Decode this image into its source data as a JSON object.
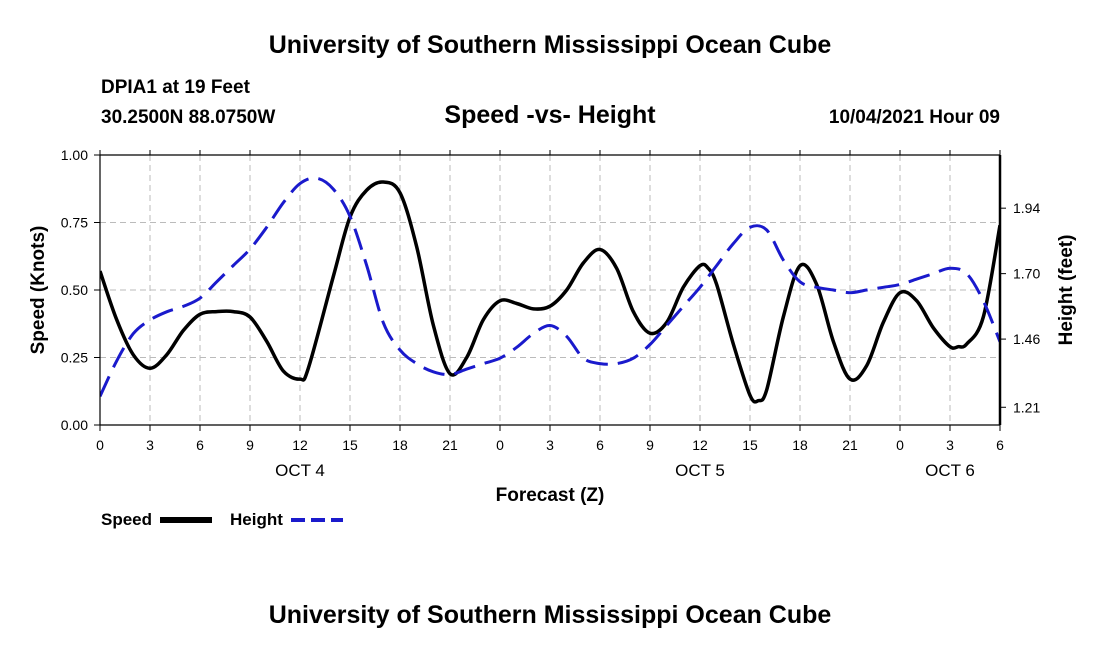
{
  "header": {
    "title_top": "University of Southern Mississippi Ocean Cube",
    "station": "DPIA1 at 19 Feet",
    "coords": "30.2500N  88.0750W",
    "subtitle": "Speed -vs- Height",
    "datetime": "10/04/2021 Hour 09",
    "title_bottom": "University of Southern Mississippi Ocean Cube"
  },
  "legend": {
    "speed_label": "Speed",
    "height_label": "Height"
  },
  "colors": {
    "speed": "#000000",
    "height": "#1a1acc",
    "grid": "#bbbbbb"
  },
  "chart_data": {
    "type": "line",
    "title": "Speed -vs- Height",
    "xlabel": "Forecast (Z)",
    "ylabel": "Speed (Knots)",
    "y2label": "Height (feet)",
    "x_range_hours": [
      0,
      54
    ],
    "ylim": [
      0,
      1.0
    ],
    "y2lim": [
      1.145,
      2.135
    ],
    "x_ticks": [
      {
        "h": 0,
        "label": "0"
      },
      {
        "h": 3,
        "label": "3"
      },
      {
        "h": 6,
        "label": "6"
      },
      {
        "h": 9,
        "label": "9"
      },
      {
        "h": 12,
        "label": "12"
      },
      {
        "h": 15,
        "label": "15"
      },
      {
        "h": 18,
        "label": "18"
      },
      {
        "h": 21,
        "label": "21"
      },
      {
        "h": 24,
        "label": "0"
      },
      {
        "h": 27,
        "label": "3"
      },
      {
        "h": 30,
        "label": "6"
      },
      {
        "h": 33,
        "label": "9"
      },
      {
        "h": 36,
        "label": "12"
      },
      {
        "h": 39,
        "label": "15"
      },
      {
        "h": 42,
        "label": "18"
      },
      {
        "h": 45,
        "label": "21"
      },
      {
        "h": 48,
        "label": "0"
      },
      {
        "h": 51,
        "label": "3"
      },
      {
        "h": 54,
        "label": "6"
      }
    ],
    "date_labels": [
      {
        "h": 12,
        "label": "OCT 4"
      },
      {
        "h": 36,
        "label": "OCT 5"
      },
      {
        "h": 51,
        "label": "OCT 6"
      }
    ],
    "y_ticks": [
      {
        "v": 0.0,
        "label": "0.00"
      },
      {
        "v": 0.25,
        "label": "0.25"
      },
      {
        "v": 0.5,
        "label": "0.50"
      },
      {
        "v": 0.75,
        "label": "0.75"
      },
      {
        "v": 1.0,
        "label": "1.00"
      }
    ],
    "y2_ticks": [
      {
        "v": 1.21,
        "label": "1.21"
      },
      {
        "v": 1.46,
        "label": "1.46"
      },
      {
        "v": 1.7,
        "label": "1.70"
      },
      {
        "v": 1.94,
        "label": "1.94"
      }
    ],
    "series": [
      {
        "name": "Speed",
        "axis": "left",
        "points": [
          [
            0,
            0.57
          ],
          [
            1,
            0.39
          ],
          [
            2,
            0.26
          ],
          [
            3,
            0.21
          ],
          [
            4,
            0.26
          ],
          [
            5,
            0.35
          ],
          [
            6,
            0.41
          ],
          [
            7,
            0.42
          ],
          [
            8,
            0.42
          ],
          [
            9,
            0.4
          ],
          [
            10,
            0.31
          ],
          [
            11,
            0.2
          ],
          [
            12,
            0.17
          ],
          [
            12.5,
            0.21
          ],
          [
            14,
            0.55
          ],
          [
            15,
            0.77
          ],
          [
            16,
            0.87
          ],
          [
            17,
            0.9
          ],
          [
            18,
            0.86
          ],
          [
            19,
            0.66
          ],
          [
            20,
            0.37
          ],
          [
            21,
            0.19
          ],
          [
            22,
            0.25
          ],
          [
            23,
            0.39
          ],
          [
            24,
            0.46
          ],
          [
            25,
            0.45
          ],
          [
            26,
            0.43
          ],
          [
            27,
            0.44
          ],
          [
            28,
            0.5
          ],
          [
            29,
            0.6
          ],
          [
            30,
            0.65
          ],
          [
            31,
            0.58
          ],
          [
            32,
            0.42
          ],
          [
            33,
            0.34
          ],
          [
            34,
            0.38
          ],
          [
            35,
            0.51
          ],
          [
            36,
            0.59
          ],
          [
            36.5,
            0.58
          ],
          [
            37,
            0.52
          ],
          [
            38,
            0.3
          ],
          [
            39,
            0.11
          ],
          [
            39.5,
            0.09
          ],
          [
            40,
            0.13
          ],
          [
            41,
            0.4
          ],
          [
            42,
            0.59
          ],
          [
            43,
            0.52
          ],
          [
            44,
            0.31
          ],
          [
            45,
            0.17
          ],
          [
            46,
            0.22
          ],
          [
            47,
            0.38
          ],
          [
            48,
            0.49
          ],
          [
            49,
            0.46
          ],
          [
            50,
            0.36
          ],
          [
            51,
            0.29
          ],
          [
            51.5,
            0.29
          ],
          [
            52,
            0.3
          ],
          [
            53,
            0.4
          ],
          [
            54,
            0.74
          ]
        ]
      },
      {
        "name": "Height",
        "axis": "right",
        "points": [
          [
            0,
            1.25
          ],
          [
            1,
            1.38
          ],
          [
            2,
            1.48
          ],
          [
            3,
            1.53
          ],
          [
            4,
            1.56
          ],
          [
            5,
            1.58
          ],
          [
            6,
            1.61
          ],
          [
            7,
            1.67
          ],
          [
            8,
            1.73
          ],
          [
            9,
            1.79
          ],
          [
            10,
            1.87
          ],
          [
            11,
            1.96
          ],
          [
            12,
            2.03
          ],
          [
            13,
            2.05
          ],
          [
            14,
            2.01
          ],
          [
            15,
            1.91
          ],
          [
            16,
            1.73
          ],
          [
            17,
            1.52
          ],
          [
            18,
            1.42
          ],
          [
            19,
            1.37
          ],
          [
            20,
            1.34
          ],
          [
            21,
            1.33
          ],
          [
            22,
            1.35
          ],
          [
            23,
            1.37
          ],
          [
            24,
            1.39
          ],
          [
            25,
            1.43
          ],
          [
            26,
            1.48
          ],
          [
            27,
            1.51
          ],
          [
            28,
            1.47
          ],
          [
            29,
            1.39
          ],
          [
            30,
            1.37
          ],
          [
            31,
            1.37
          ],
          [
            32,
            1.39
          ],
          [
            33,
            1.44
          ],
          [
            34,
            1.51
          ],
          [
            35,
            1.58
          ],
          [
            36,
            1.65
          ],
          [
            37,
            1.73
          ],
          [
            38,
            1.81
          ],
          [
            39,
            1.87
          ],
          [
            40,
            1.86
          ],
          [
            41,
            1.75
          ],
          [
            42,
            1.67
          ],
          [
            43,
            1.65
          ],
          [
            44,
            1.64
          ],
          [
            45,
            1.63
          ],
          [
            46,
            1.64
          ],
          [
            47,
            1.65
          ],
          [
            48,
            1.66
          ],
          [
            49,
            1.68
          ],
          [
            50,
            1.7
          ],
          [
            51,
            1.72
          ],
          [
            52,
            1.7
          ],
          [
            53,
            1.6
          ],
          [
            54,
            1.45
          ]
        ]
      }
    ]
  }
}
